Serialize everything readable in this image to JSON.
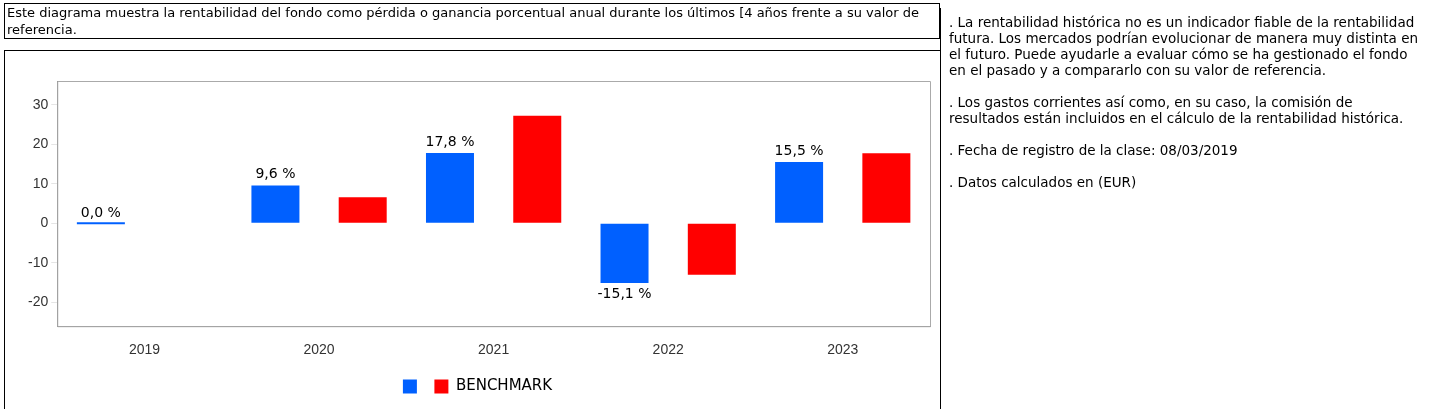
{
  "chart_data": {
    "type": "bar",
    "title": "Este diagrama muestra la rentabilidad del fondo como pérdida o ganancia porcentual anual durante los últimos [4 años frente a su valor de referencia.",
    "categories": [
      "2019",
      "2020",
      "2021",
      "2022",
      "2023"
    ],
    "series": [
      {
        "color": "#0060ff",
        "values": [
          0.0,
          9.6,
          17.8,
          -15.1,
          15.5
        ],
        "value_labels": [
          "0,0 %",
          "9,6 %",
          "17,8 %",
          "-15,1 %",
          "15,5 %"
        ]
      },
      {
        "name": "BENCHMARK",
        "color": "#ff0000",
        "values": [
          null,
          6.6,
          27.2,
          -13.0,
          17.7
        ]
      }
    ],
    "ylim": [
      -26,
      36
    ],
    "yticks": [
      -20,
      -10,
      0,
      10,
      20,
      30
    ],
    "grid": false,
    "legend": "bottom",
    "annotations": [
      ". La rentabilidad histórica no es un indicador fiable de la rentabilidad futura. Los mercados podrían evolucionar de manera muy distinta en el futuro. Puede ayudarle a evaluar cómo se ha gestionado el fondo en el pasado y a compararlo con su valor de referencia.",
      ". Los gastos corrientes así como, en su caso, la comisión de resultados están incluidos en el cálculo de la rentabilidad histórica.",
      ". Fecha de registro de la clase: 08/03/2019",
      ". Datos calculados en (EUR)"
    ]
  }
}
